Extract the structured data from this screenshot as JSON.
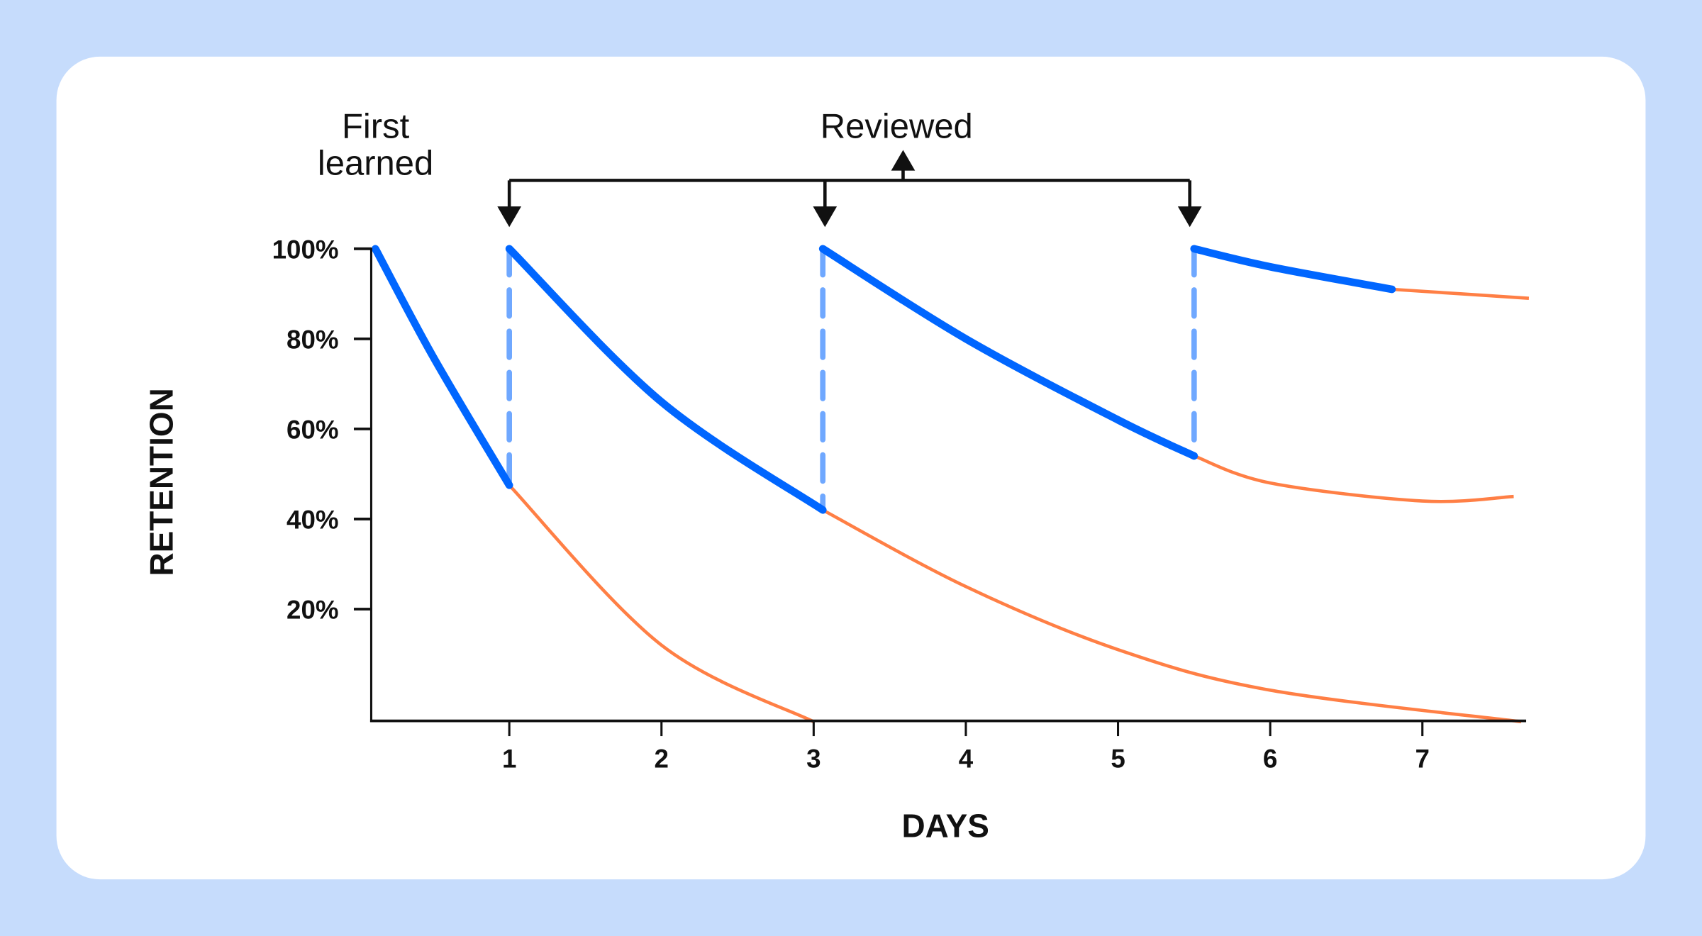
{
  "chart_data": {
    "type": "line",
    "title": "",
    "xlabel": "DAYS",
    "ylabel": "RETENTION",
    "xticks": [
      "1",
      "2",
      "3",
      "4",
      "5",
      "6",
      "7"
    ],
    "xtick_values": [
      1,
      2,
      3,
      4,
      5,
      6,
      7
    ],
    "yticks": [
      "20%",
      "40%",
      "60%",
      "80%",
      "100%"
    ],
    "ytick_values": [
      20,
      40,
      60,
      80,
      100
    ],
    "xlim": [
      0.1,
      7.7
    ],
    "ylim": [
      -5,
      100
    ],
    "grid": false,
    "annotations": {
      "first_learned": [
        "First",
        "learned"
      ],
      "reviewed": "Reviewed",
      "review_days": [
        1,
        3.06,
        5.5
      ]
    },
    "colors": {
      "studied": "#0066ff",
      "forgetting": "#ff7f45",
      "review_drop": "#6fa8ff",
      "background": "#c6dcfc",
      "card": "#ffffff"
    },
    "series": [
      {
        "studied": [
          [
            0.12,
            100
          ],
          [
            0.5,
            76
          ],
          [
            1.0,
            47.5
          ]
        ],
        "forgetting": [
          [
            1.0,
            47.5
          ],
          [
            2.0,
            12
          ],
          [
            3.0,
            -5
          ]
        ]
      },
      {
        "studied": [
          [
            1.0,
            100
          ],
          [
            2.0,
            66
          ],
          [
            3.06,
            42
          ]
        ],
        "forgetting": [
          [
            3.06,
            42
          ],
          [
            4.0,
            25
          ],
          [
            5.0,
            11
          ],
          [
            6.0,
            2
          ],
          [
            7.65,
            -5
          ]
        ]
      },
      {
        "studied": [
          [
            3.06,
            100
          ],
          [
            4.0,
            80
          ],
          [
            5.0,
            62
          ],
          [
            5.5,
            54
          ]
        ],
        "forgetting": [
          [
            5.5,
            54
          ],
          [
            6.0,
            48
          ],
          [
            7.0,
            44
          ],
          [
            7.6,
            45
          ]
        ]
      },
      {
        "studied": [
          [
            5.5,
            100
          ],
          [
            6.0,
            96
          ],
          [
            6.8,
            91
          ]
        ],
        "forgetting": [
          [
            6.8,
            91
          ],
          [
            7.7,
            89
          ]
        ]
      }
    ]
  }
}
